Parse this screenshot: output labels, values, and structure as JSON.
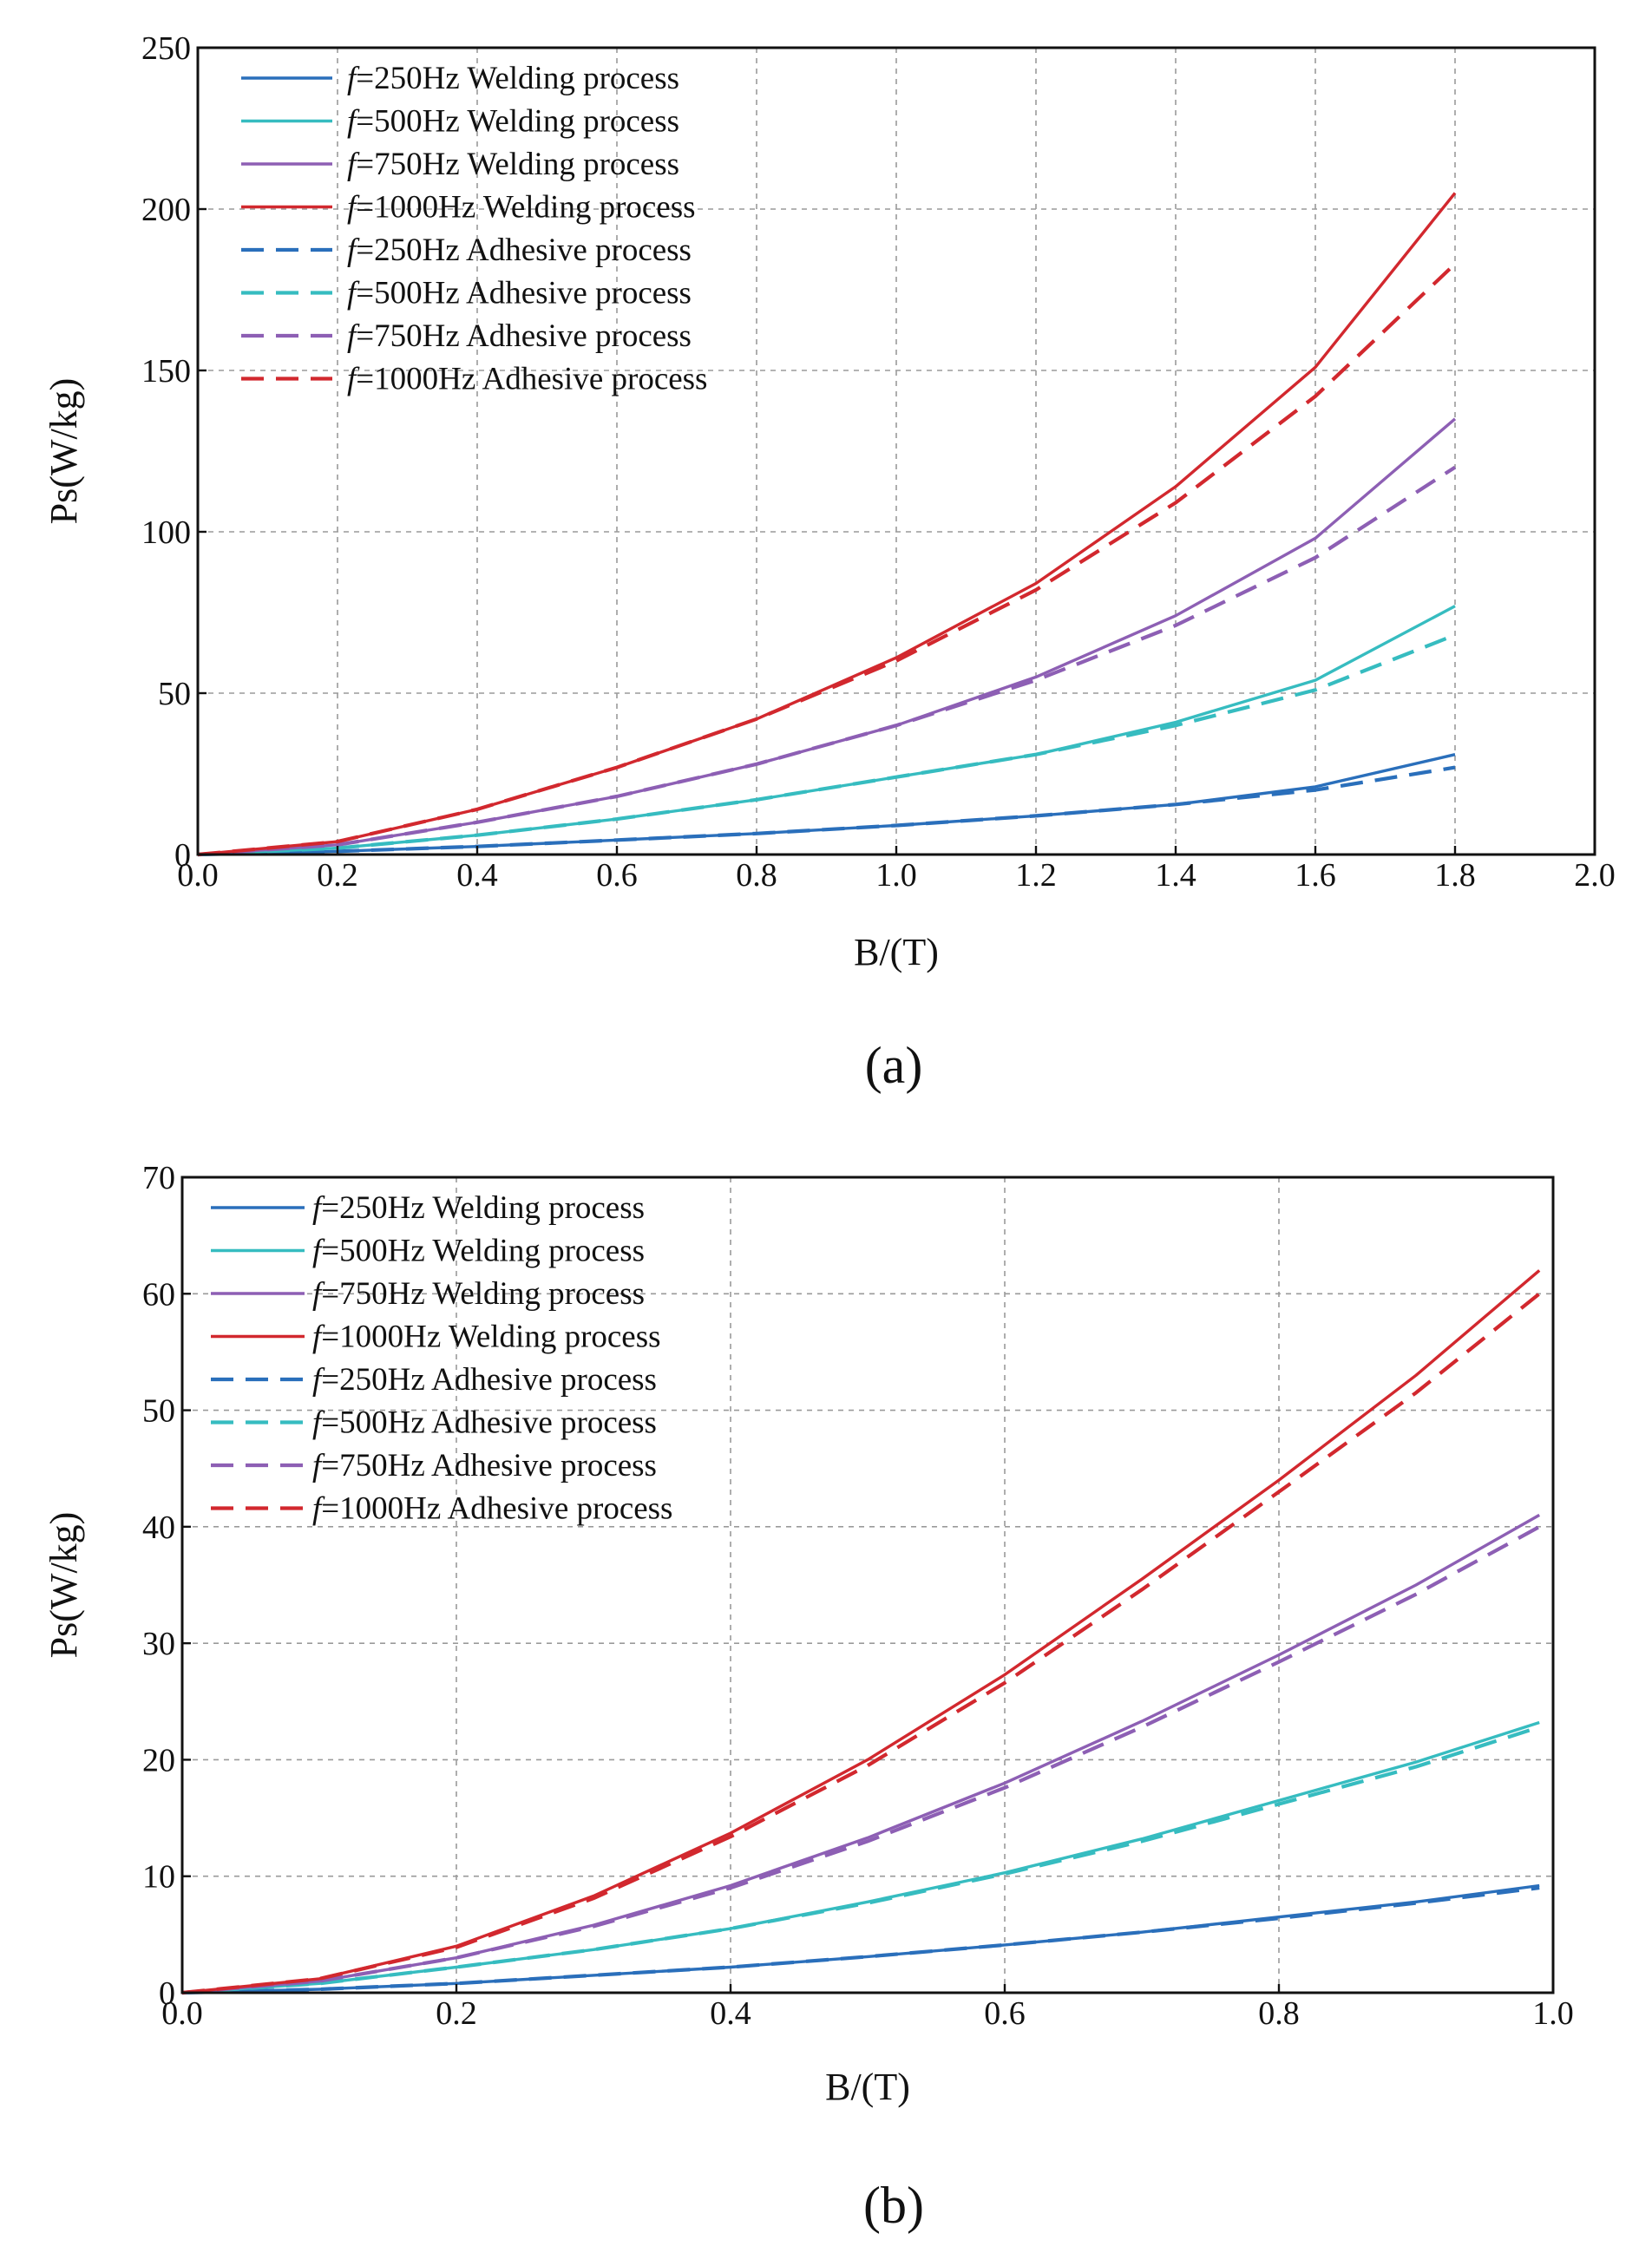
{
  "chart_data": [
    {
      "type": "line",
      "caption": "(a)",
      "xlabel": "B/(T)",
      "ylabel": "Ps(W/kg)",
      "xlim": [
        0,
        2.0
      ],
      "ylim": [
        0,
        250
      ],
      "xticks": [
        "0.0",
        "0.2",
        "0.4",
        "0.6",
        "0.8",
        "1.0",
        "1.2",
        "1.4",
        "1.6",
        "1.8",
        "2.0"
      ],
      "yticks": [
        "0",
        "50",
        "100",
        "150",
        "200",
        "250"
      ],
      "grid": true,
      "legend_position": "top-left",
      "x": [
        0,
        0.2,
        0.4,
        0.6,
        0.8,
        1.0,
        1.2,
        1.4,
        1.6,
        1.8
      ],
      "series": [
        {
          "name": "f=250Hz Welding process",
          "f": "f",
          "label_rest": "=250Hz Welding process",
          "color": "#2a6fbb",
          "style": "solid",
          "values": [
            0,
            1,
            2.5,
            4.5,
            6.5,
            9,
            12,
            15.5,
            21,
            31
          ]
        },
        {
          "name": "f=500Hz Welding process",
          "f": "f",
          "label_rest": "=500Hz Welding process",
          "color": "#36bcc0",
          "style": "solid",
          "values": [
            0,
            2,
            6,
            11,
            17,
            24,
            31,
            41,
            54,
            77
          ]
        },
        {
          "name": "f=750Hz Welding process",
          "f": "f",
          "label_rest": "=750Hz Welding process",
          "color": "#8d5fb4",
          "style": "solid",
          "values": [
            0,
            3,
            10,
            18,
            28,
            40,
            55,
            74,
            98,
            135
          ]
        },
        {
          "name": "f=1000Hz Welding process",
          "f": "f",
          "label_rest": "=1000Hz Welding process",
          "color": "#d2282e",
          "style": "solid",
          "values": [
            0,
            4,
            14,
            27,
            42,
            61,
            84,
            114,
            151,
            205
          ]
        },
        {
          "name": "f=250Hz Adhesive process",
          "f": "f",
          "label_rest": "=250Hz Adhesive process",
          "color": "#2a6fbb",
          "style": "dashed",
          "values": [
            0,
            1,
            2.5,
            4.5,
            6.5,
            9,
            12,
            15.5,
            20,
            27
          ]
        },
        {
          "name": "f=500Hz Adhesive process",
          "f": "f",
          "label_rest": "=500Hz Adhesive process",
          "color": "#36bcc0",
          "style": "dashed",
          "values": [
            0,
            2,
            6,
            11,
            17,
            24,
            31,
            40,
            51,
            68
          ]
        },
        {
          "name": "f=750Hz Adhesive process",
          "f": "f",
          "label_rest": "=750Hz Adhesive process",
          "color": "#8d5fb4",
          "style": "dashed",
          "values": [
            0,
            3,
            10,
            18,
            28,
            40,
            54,
            71,
            92,
            120
          ]
        },
        {
          "name": "f=1000Hz Adhesive process",
          "f": "f",
          "label_rest": "=1000Hz Adhesive process",
          "color": "#d2282e",
          "style": "dashed",
          "values": [
            0,
            4,
            14,
            27,
            42,
            60,
            82,
            109,
            142,
            183
          ]
        }
      ]
    },
    {
      "type": "line",
      "caption": "(b)",
      "xlabel": "B/(T)",
      "ylabel": "Ps(W/kg)",
      "xlim": [
        0,
        1.0
      ],
      "ylim": [
        0,
        70
      ],
      "xticks": [
        "0.0",
        "0.2",
        "0.4",
        "0.6",
        "0.8",
        "1.0"
      ],
      "yticks": [
        "0",
        "10",
        "20",
        "30",
        "40",
        "50",
        "60",
        "70"
      ],
      "grid": true,
      "legend_position": "top-left",
      "x": [
        0,
        0.1,
        0.2,
        0.3,
        0.4,
        0.5,
        0.6,
        0.7,
        0.8,
        0.9,
        0.99
      ],
      "series": [
        {
          "name": "f=250Hz Welding process",
          "f": "f",
          "label_rest": "=250Hz Welding process",
          "color": "#2a6fbb",
          "style": "solid",
          "values": [
            0,
            0.3,
            0.8,
            1.5,
            2.2,
            3.1,
            4.1,
            5.2,
            6.5,
            7.8,
            9.2
          ]
        },
        {
          "name": "f=500Hz Welding process",
          "f": "f",
          "label_rest": "=500Hz Welding process",
          "color": "#36bcc0",
          "style": "solid",
          "values": [
            0,
            0.8,
            2.2,
            3.7,
            5.5,
            7.8,
            10.3,
            13.2,
            16.5,
            19.8,
            23.2
          ]
        },
        {
          "name": "f=750Hz Welding process",
          "f": "f",
          "label_rest": "=750Hz Welding process",
          "color": "#8d5fb4",
          "style": "solid",
          "values": [
            0,
            1.0,
            3.0,
            5.8,
            9.2,
            13.3,
            18.0,
            23.3,
            29.0,
            35.0,
            41.0
          ]
        },
        {
          "name": "f=1000Hz Welding process",
          "f": "f",
          "label_rest": "=1000Hz Welding process",
          "color": "#d2282e",
          "style": "solid",
          "values": [
            0,
            1.2,
            4.0,
            8.3,
            13.7,
            20.0,
            27.3,
            35.5,
            44.0,
            53.0,
            62.0
          ]
        },
        {
          "name": "f=250Hz Adhesive process",
          "f": "f",
          "label_rest": "=250Hz Adhesive process",
          "color": "#2a6fbb",
          "style": "dashed",
          "values": [
            0,
            0.3,
            0.8,
            1.5,
            2.2,
            3.1,
            4.1,
            5.2,
            6.4,
            7.7,
            9.0
          ]
        },
        {
          "name": "f=500Hz Adhesive process",
          "f": "f",
          "label_rest": "=500Hz Adhesive process",
          "color": "#36bcc0",
          "style": "dashed",
          "values": [
            0,
            0.8,
            2.2,
            3.7,
            5.5,
            7.7,
            10.2,
            13.0,
            16.2,
            19.4,
            22.8
          ]
        },
        {
          "name": "f=750Hz Adhesive process",
          "f": "f",
          "label_rest": "=750Hz Adhesive process",
          "color": "#8d5fb4",
          "style": "dashed",
          "values": [
            0,
            1.0,
            3.0,
            5.7,
            9.0,
            13.0,
            17.6,
            22.8,
            28.4,
            34.2,
            40.0
          ]
        },
        {
          "name": "f=1000Hz Adhesive process",
          "f": "f",
          "label_rest": "=1000Hz Adhesive process",
          "color": "#d2282e",
          "style": "dashed",
          "values": [
            0,
            1.2,
            3.9,
            8.1,
            13.4,
            19.5,
            26.6,
            34.6,
            43.0,
            51.5,
            60.0
          ]
        }
      ]
    }
  ]
}
